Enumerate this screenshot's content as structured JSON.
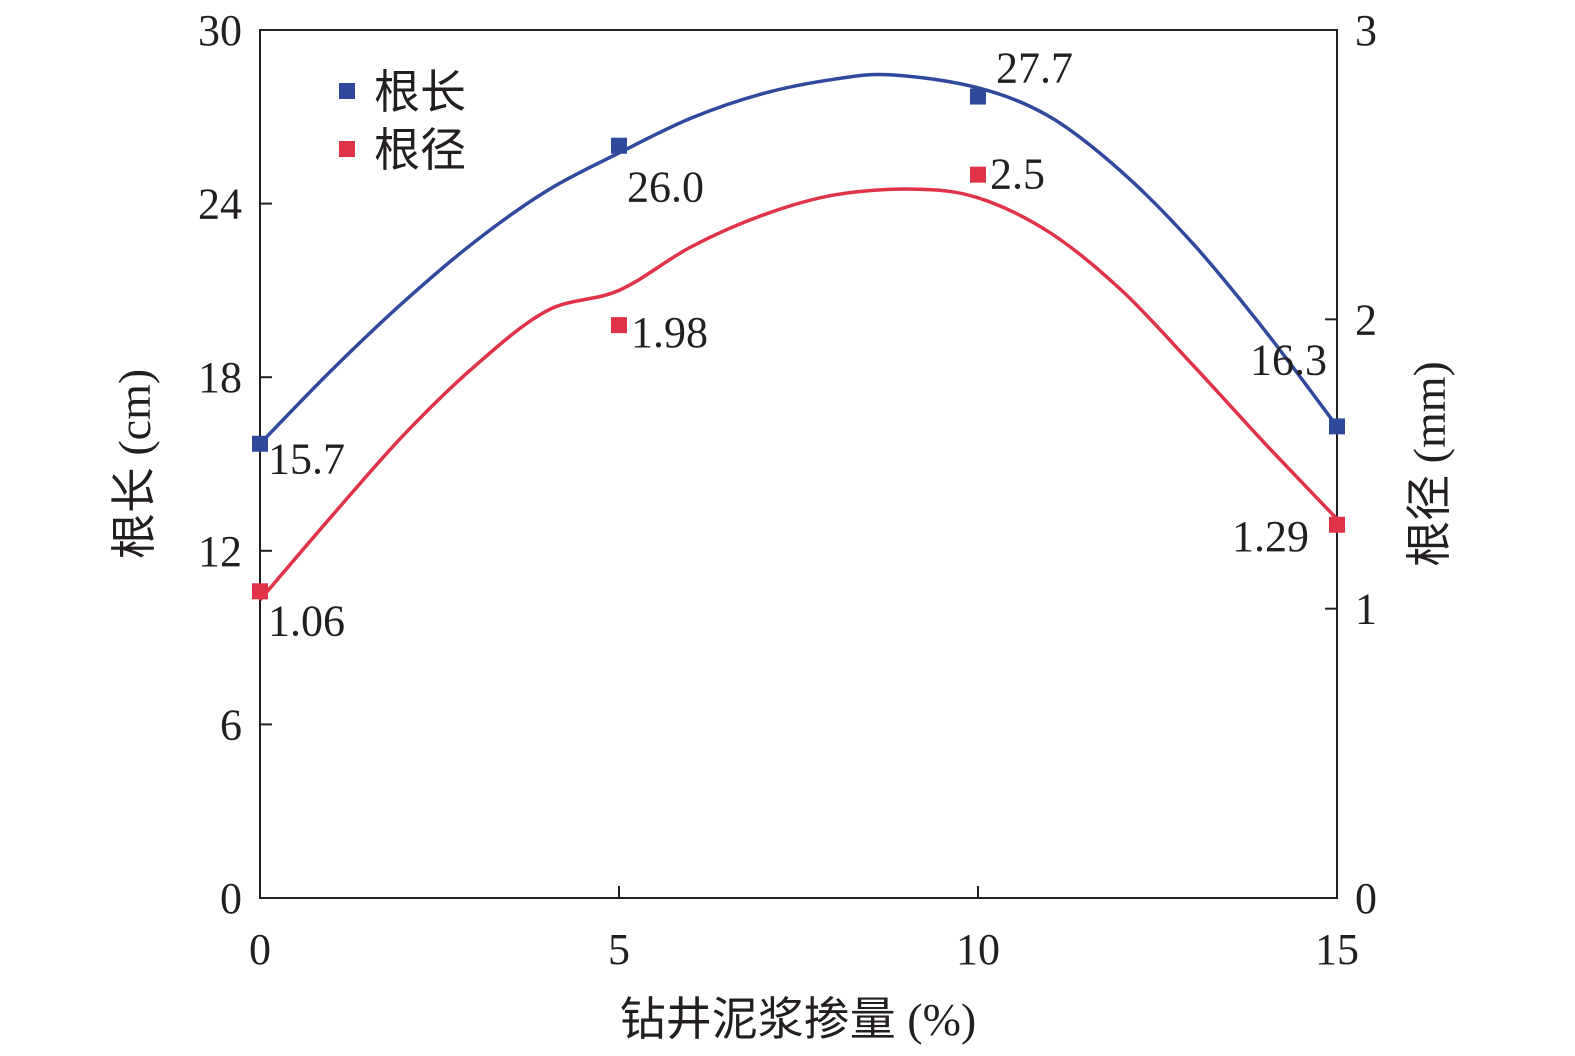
{
  "chart_data": {
    "type": "scatter",
    "x": [
      0,
      5,
      10,
      15
    ],
    "xlabel": "钻井泥浆掺量 (%)",
    "xlim": [
      0,
      15
    ],
    "xticks": [
      "0",
      "5",
      "10",
      "15"
    ],
    "y_left": {
      "label": "根长 (cm)",
      "lim": [
        0,
        30
      ],
      "ticks": [
        "0",
        "6",
        "12",
        "18",
        "24",
        "30"
      ]
    },
    "y_right": {
      "label": "根径 (mm)",
      "lim": [
        0,
        3
      ],
      "ticks": [
        "0",
        "1",
        "2",
        "3"
      ]
    },
    "series": [
      {
        "name": "根长",
        "axis": "left",
        "color": "#2f4a9c",
        "values": [
          15.7,
          26.0,
          27.7,
          16.3
        ],
        "labels": [
          "15.7",
          "26.0",
          "27.7",
          "16.3"
        ],
        "fit_curve": [
          [
            0,
            15.7
          ],
          [
            1,
            18.25
          ],
          [
            2,
            20.6
          ],
          [
            3,
            22.7
          ],
          [
            4,
            24.45
          ],
          [
            5,
            25.75
          ],
          [
            6,
            26.95
          ],
          [
            7,
            27.8
          ],
          [
            8,
            28.3
          ],
          [
            8.8,
            28.45
          ],
          [
            10,
            28.0
          ],
          [
            11,
            27.0
          ],
          [
            12,
            25.1
          ],
          [
            13,
            22.6
          ],
          [
            14,
            19.6
          ],
          [
            15,
            16.3
          ]
        ]
      },
      {
        "name": "根径",
        "axis": "right",
        "color": "#e03348",
        "values": [
          1.06,
          1.98,
          2.5,
          1.29
        ],
        "labels": [
          "1.06",
          "1.98",
          "2.5",
          "1.29"
        ],
        "fit_curve": [
          [
            0,
            1.03
          ],
          [
            1,
            1.32
          ],
          [
            2,
            1.6
          ],
          [
            3,
            1.84
          ],
          [
            4,
            2.03
          ],
          [
            5,
            2.1
          ],
          [
            6,
            2.25
          ],
          [
            7,
            2.36
          ],
          [
            8,
            2.43
          ],
          [
            9.1,
            2.45
          ],
          [
            10,
            2.42
          ],
          [
            11,
            2.3
          ],
          [
            12,
            2.1
          ],
          [
            13,
            1.84
          ],
          [
            14,
            1.57
          ],
          [
            15,
            1.31
          ]
        ]
      }
    ],
    "legend": {
      "placement": "top-left",
      "entries": [
        "根长",
        "根径"
      ]
    },
    "grid": false
  }
}
